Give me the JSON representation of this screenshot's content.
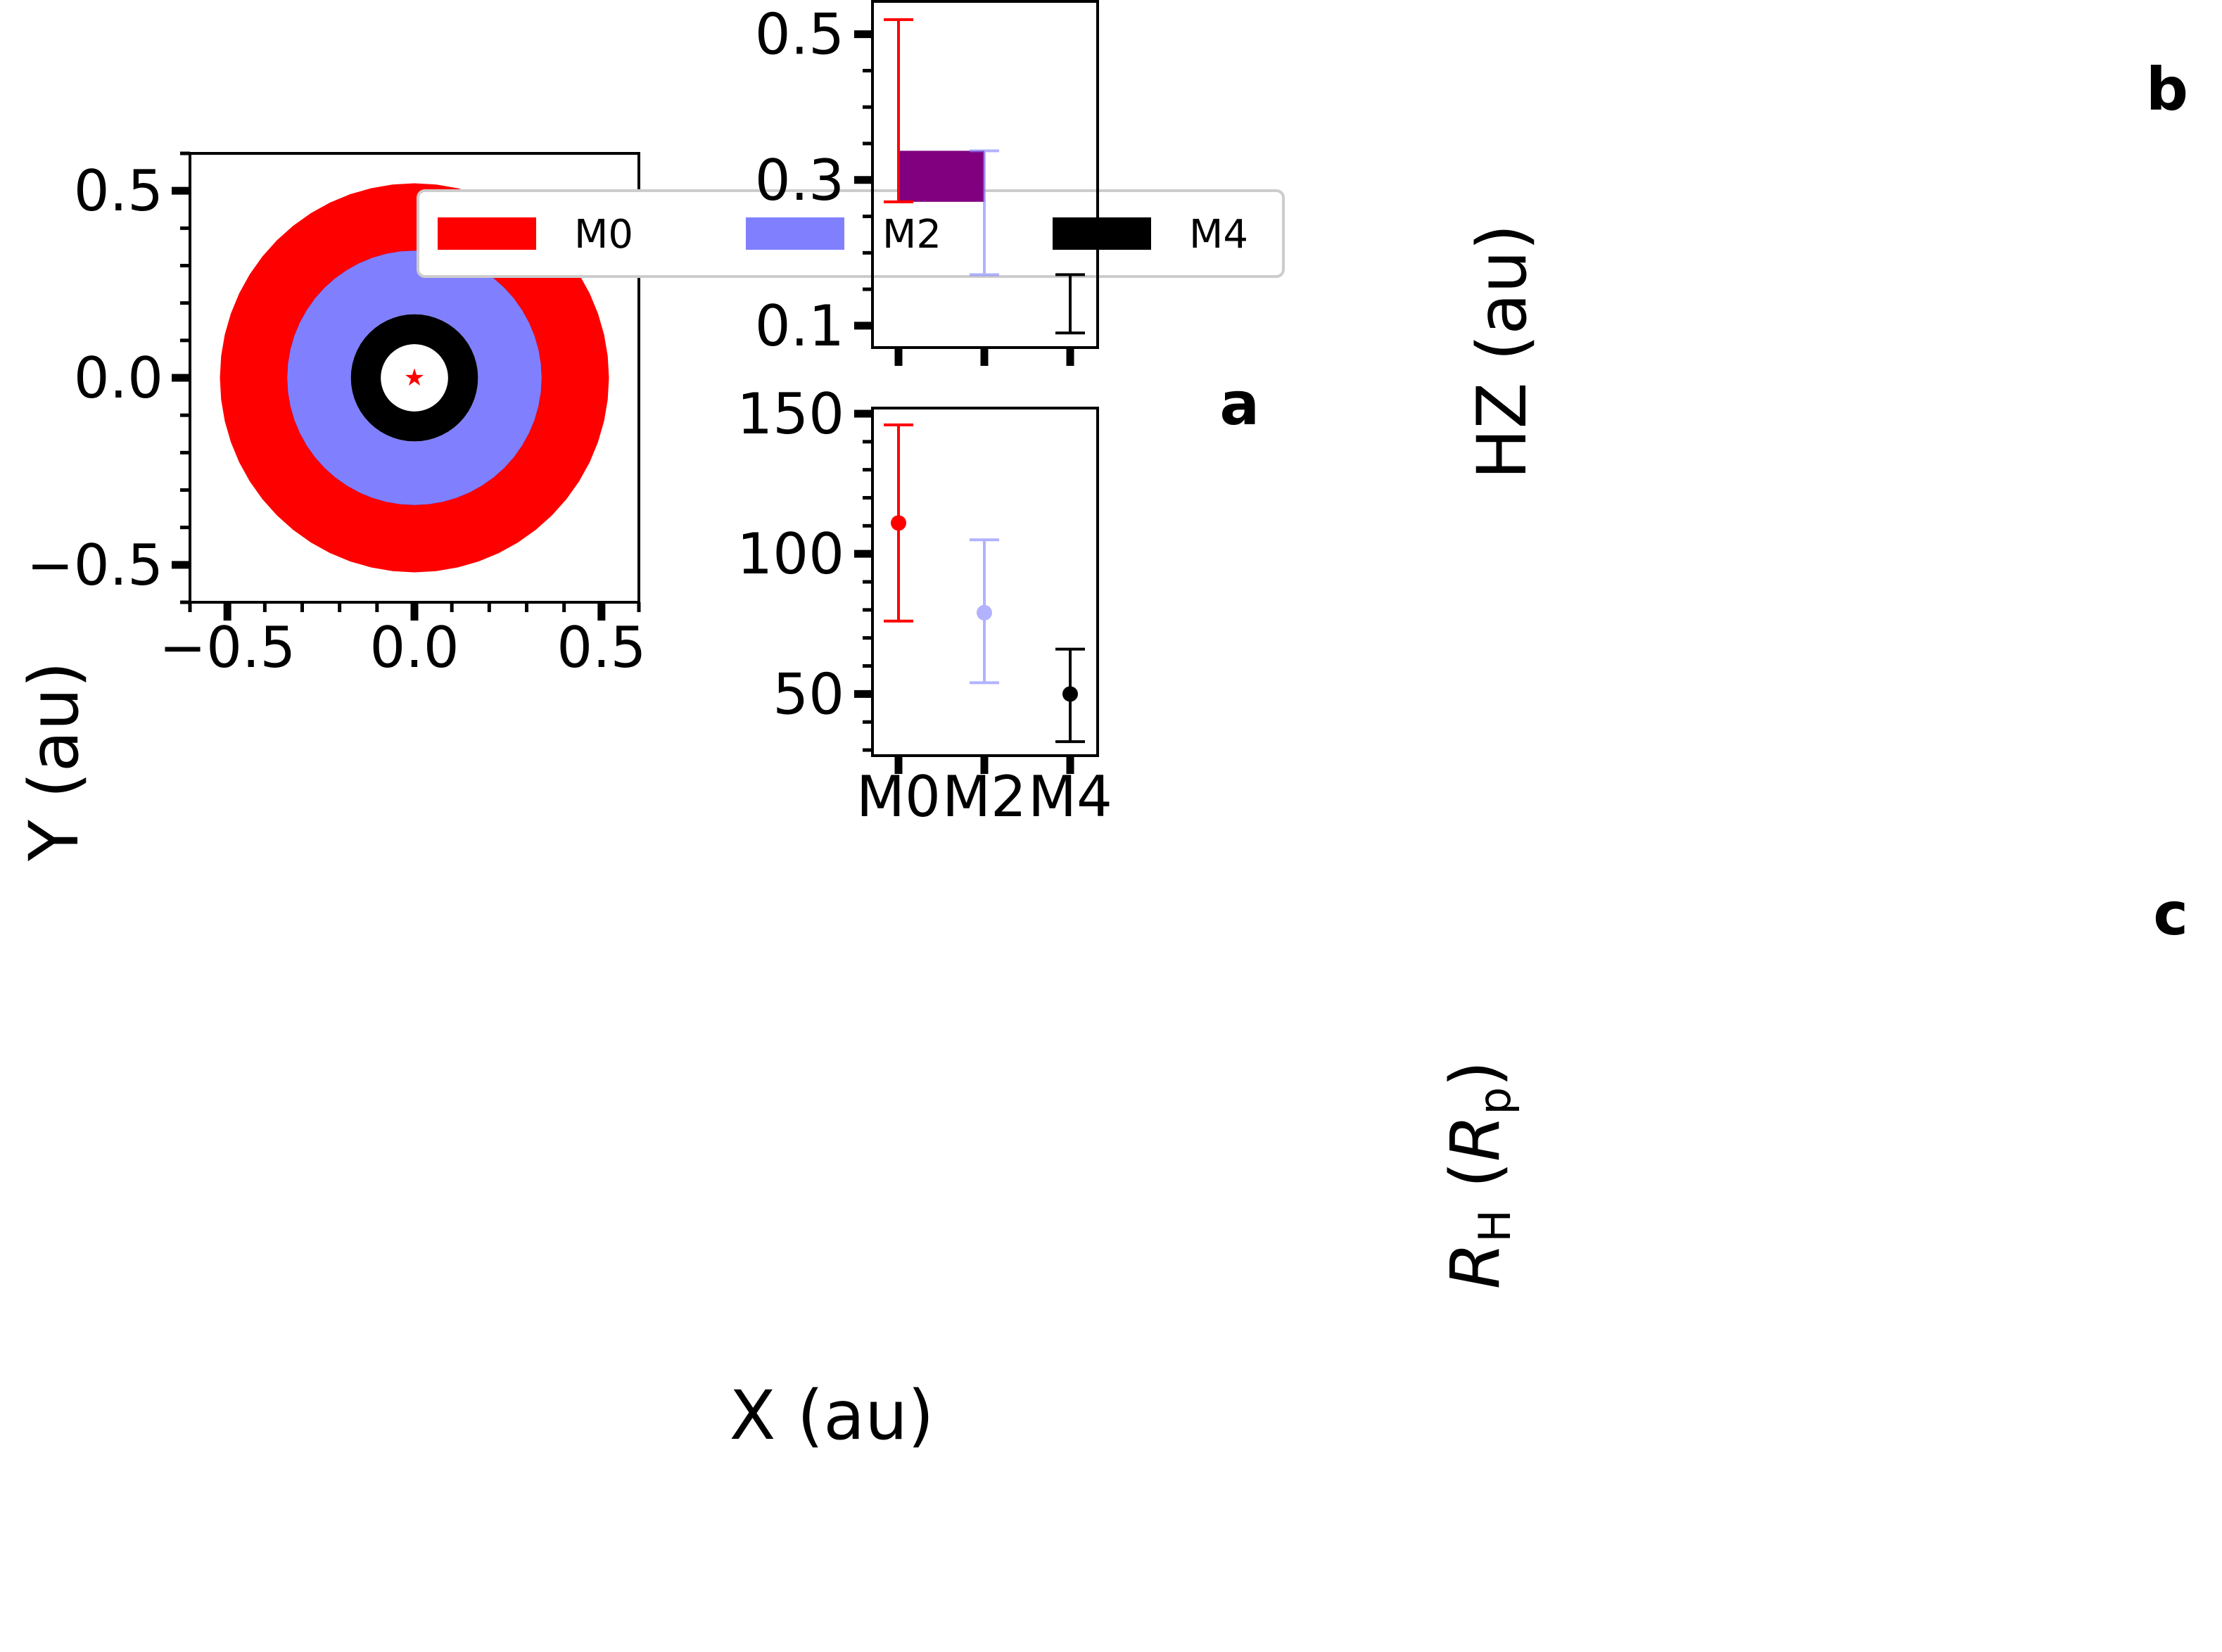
{
  "colors": {
    "M0": "#ff0000",
    "M2": "#8080ff",
    "M4": "#000000",
    "overlap": "#800080",
    "frame": "#000000",
    "legend_border": "#cccccc"
  },
  "chart_data": [
    {
      "panel": "a",
      "type": "area",
      "panel_label": "a",
      "xlabel": "X (au)",
      "ylabel": "Y (au)",
      "xlim": [
        -0.6,
        0.6
      ],
      "ylim": [
        -0.6,
        0.6
      ],
      "xticks": [
        {
          "value": -0.5,
          "label": "−0.5"
        },
        {
          "value": 0.0,
          "label": "0.0"
        },
        {
          "value": 0.5,
          "label": "0.5"
        }
      ],
      "yticks": [
        {
          "value": 0.5,
          "label": "0.5"
        },
        {
          "value": 0.0,
          "label": "0.0"
        },
        {
          "value": -0.5,
          "label": "−0.5"
        }
      ],
      "legend": [
        "M0",
        "M2",
        "M4"
      ],
      "legend_position": "top-center",
      "annuli": [
        {
          "name": "M0",
          "inner": 0.27,
          "outer": 0.52
        },
        {
          "name": "M2",
          "inner": 0.17,
          "outer": 0.34
        },
        {
          "name": "M4",
          "inner": 0.09,
          "outer": 0.17
        }
      ],
      "overlap": {
        "inner": 0.27,
        "outer": 0.34
      },
      "star": {
        "x": 0.0,
        "y": 0.0,
        "symbol": "★"
      }
    },
    {
      "panel": "b",
      "type": "bar",
      "panel_label": "b",
      "ylabel": "HZ (au)",
      "ylim": [
        0.07,
        0.545
      ],
      "yticks": [
        {
          "value": 0.1,
          "label": "0.1"
        },
        {
          "value": 0.3,
          "label": "0.3"
        },
        {
          "value": 0.5,
          "label": "0.5"
        }
      ],
      "categories": [
        "M0",
        "M2",
        "M4"
      ],
      "ranges": [
        {
          "name": "M0",
          "low": 0.27,
          "high": 0.52
        },
        {
          "name": "M2",
          "low": 0.17,
          "high": 0.34
        },
        {
          "name": "M4",
          "low": 0.09,
          "high": 0.17
        }
      ],
      "overlap": {
        "from": "M0",
        "to": "M2",
        "low": 0.27,
        "high": 0.34
      }
    },
    {
      "panel": "c",
      "type": "scatter",
      "panel_label": "c",
      "ylabel_main": "R",
      "ylabel_sub": "H",
      "ylabel_paren_open": "(",
      "ylabel_unit_main": "R",
      "ylabel_unit_sub": "p",
      "ylabel_paren_close": ")",
      "ylim": [
        28,
        152
      ],
      "yticks": [
        {
          "value": 50,
          "label": "50"
        },
        {
          "value": 100,
          "label": "100"
        },
        {
          "value": 150,
          "label": "150"
        }
      ],
      "categories": [
        "M0",
        "M2",
        "M4"
      ],
      "points": [
        {
          "name": "M0",
          "value": 111,
          "low": 76,
          "high": 146
        },
        {
          "name": "M2",
          "value": 79,
          "low": 54,
          "high": 105
        },
        {
          "name": "M4",
          "value": 50,
          "low": 33,
          "high": 66
        }
      ]
    }
  ]
}
